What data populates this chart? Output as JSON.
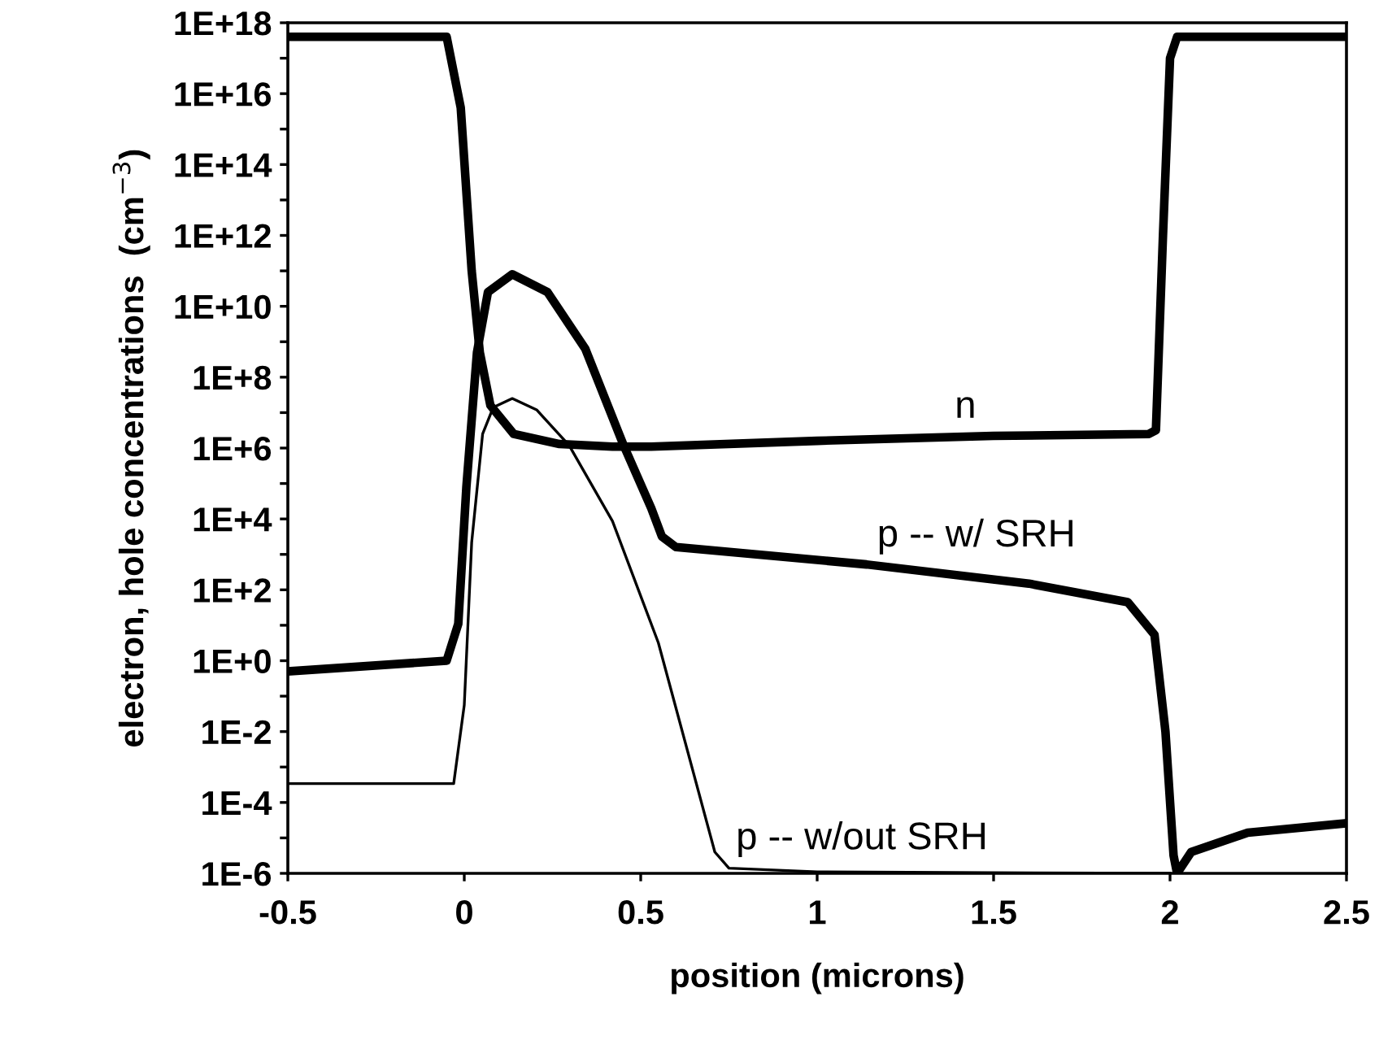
{
  "chart_data": {
    "type": "line",
    "xlabel": "position (microns)",
    "ylabel": "electron, hole concentrations  (cm$^{−3}$)",
    "log": "y",
    "grid": false,
    "marker": "none",
    "line_style": "solid",
    "xlim": [
      -0.5,
      2.5
    ],
    "xticks": [
      -0.5,
      0,
      0.5,
      1,
      1.5,
      2,
      2.5
    ],
    "ylim": [
      1e-06,
      1e+18
    ],
    "yticks": [
      {
        "value": 1e+18,
        "label": "1E+18"
      },
      {
        "value": 1e+17,
        "label": null
      },
      {
        "value": 1e+16,
        "label": "1E+16"
      },
      {
        "value": 1000000000000000.0,
        "label": null
      },
      {
        "value": 100000000000000.0,
        "label": "1E+14"
      },
      {
        "value": 10000000000000.0,
        "label": null
      },
      {
        "value": 1000000000000.0,
        "label": "1E+12"
      },
      {
        "value": 100000000000.0,
        "label": null
      },
      {
        "value": 10000000000.0,
        "label": "1E+10"
      },
      {
        "value": 1000000000.0,
        "label": null
      },
      {
        "value": 100000000.0,
        "label": "1E+8"
      },
      {
        "value": 10000000.0,
        "label": null
      },
      {
        "value": 1000000.0,
        "label": "1E+6"
      },
      {
        "value": 100000.0,
        "label": null
      },
      {
        "value": 10000.0,
        "label": "1E+4"
      },
      {
        "value": 1000.0,
        "label": null
      },
      {
        "value": 100.0,
        "label": "1E+2"
      },
      {
        "value": 10,
        "label": null
      },
      {
        "value": 1,
        "label": "1E+0"
      },
      {
        "value": 0.1,
        "label": null
      },
      {
        "value": 0.01,
        "label": "1E-2"
      },
      {
        "value": 0.001,
        "label": null
      },
      {
        "value": 0.0001,
        "label": "1E-4"
      },
      {
        "value": 1e-05,
        "label": null
      },
      {
        "value": 1e-06,
        "label": "1E-6"
      }
    ],
    "series": [
      {
        "name": "n",
        "color": "#000000",
        "x": [
          -0.5,
          -0.05,
          -0.01,
          0.021,
          0.044,
          0.074,
          0.14,
          0.27,
          0.42,
          0.53,
          1.0,
          1.5,
          1.94,
          1.96,
          1.98,
          2.0,
          2.02,
          2.5
        ],
        "values": [
          4e+17,
          4e+17,
          4000000000000000.0,
          100000000000.0,
          500000000.0,
          16000000.0,
          2500000.0,
          1300000.0,
          1100000.0,
          1100000.0,
          1600000.0,
          2200000.0,
          2500000.0,
          3200000.0,
          1000000000000.0,
          1e+17,
          4e+17,
          4e+17
        ]
      },
      {
        "name": "p -- w/ SRH",
        "color": "#000000",
        "x": [
          -0.5,
          -0.05,
          -0.017,
          0.006,
          0.036,
          0.067,
          0.136,
          0.236,
          0.343,
          0.45,
          0.53,
          0.56,
          0.6,
          1.14,
          1.6,
          1.88,
          1.956,
          1.987,
          2.01,
          2.02,
          2.06,
          2.22,
          2.5
        ],
        "values": [
          0.5,
          1.0,
          11,
          80000.0,
          500000000.0,
          25000000000.0,
          80000000000.0,
          25000000000.0,
          630000000.0,
          1300000.0,
          20000.0,
          3200.0,
          1600.0,
          520.0,
          150.0,
          45,
          5.4,
          0.01,
          3.2e-06,
          1e-06,
          4e-06,
          1.4e-05,
          2.6e-05
        ]
      },
      {
        "name": "p -- w/out SRH",
        "color": "#000000",
        "x": [
          -0.5,
          -0.03,
          0.0,
          0.021,
          0.052,
          0.082,
          0.136,
          0.205,
          0.297,
          0.42,
          0.55,
          0.71,
          0.75,
          1.0,
          2.0
        ],
        "values": [
          0.00034,
          0.00034,
          0.056,
          2200.0,
          2500000.0,
          14000000.0,
          25000000.0,
          12000000.0,
          1200000.0,
          8700.0,
          3.2,
          4e-06,
          1.4e-06,
          1.1e-06,
          1e-06
        ]
      }
    ]
  }
}
